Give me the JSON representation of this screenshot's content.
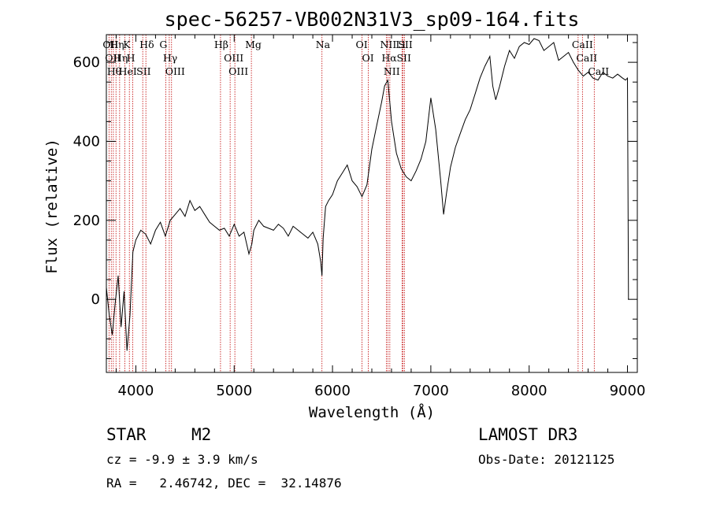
{
  "chart_data": {
    "type": "line",
    "title": "spec-56257-VB002N31V3_sp09-164.fits",
    "xlabel": "Wavelength (Å)",
    "ylabel": "Flux (relative)",
    "xlim": [
      3700,
      9100
    ],
    "ylim": [
      -185,
      670
    ],
    "x_ticks": [
      4000,
      5000,
      6000,
      7000,
      8000,
      9000
    ],
    "x_tick_labels": [
      "4000",
      "5000",
      "6000",
      "7000",
      "8000",
      "9000"
    ],
    "y_ticks": [
      0,
      200,
      400,
      600
    ],
    "y_tick_labels": [
      "0",
      "200",
      "400",
      "600"
    ],
    "series": [
      {
        "name": "flux",
        "x": [
          3700,
          3730,
          3760,
          3790,
          3820,
          3850,
          3880,
          3910,
          3940,
          3970,
          4000,
          4050,
          4100,
          4150,
          4200,
          4250,
          4300,
          4350,
          4400,
          4450,
          4500,
          4550,
          4600,
          4650,
          4700,
          4750,
          4800,
          4850,
          4900,
          4950,
          5000,
          5050,
          5100,
          5150,
          5180,
          5200,
          5250,
          5300,
          5350,
          5400,
          5450,
          5500,
          5550,
          5600,
          5650,
          5700,
          5750,
          5800,
          5850,
          5880,
          5893,
          5905,
          5930,
          5960,
          6000,
          6050,
          6100,
          6150,
          6200,
          6250,
          6300,
          6350,
          6400,
          6450,
          6500,
          6530,
          6563,
          6600,
          6650,
          6700,
          6750,
          6800,
          6850,
          6900,
          6950,
          7000,
          7050,
          7100,
          7130,
          7160,
          7200,
          7250,
          7300,
          7350,
          7400,
          7450,
          7500,
          7550,
          7600,
          7630,
          7660,
          7700,
          7750,
          7800,
          7850,
          7900,
          7950,
          8000,
          8050,
          8100,
          8150,
          8200,
          8250,
          8300,
          8350,
          8400,
          8450,
          8500,
          8550,
          8600,
          8650,
          8700,
          8750,
          8800,
          8850,
          8900,
          8950,
          8980,
          9000,
          9010
        ],
        "y": [
          30,
          -40,
          -90,
          -10,
          60,
          -70,
          20,
          -130,
          -40,
          120,
          150,
          175,
          165,
          140,
          175,
          195,
          160,
          200,
          215,
          230,
          210,
          250,
          225,
          235,
          215,
          195,
          185,
          175,
          180,
          160,
          190,
          160,
          170,
          115,
          140,
          175,
          200,
          185,
          180,
          175,
          190,
          180,
          160,
          185,
          175,
          165,
          155,
          170,
          140,
          95,
          60,
          155,
          235,
          250,
          265,
          300,
          320,
          340,
          300,
          285,
          260,
          290,
          380,
          440,
          500,
          540,
          555,
          450,
          370,
          330,
          310,
          300,
          325,
          355,
          400,
          510,
          430,
          300,
          215,
          270,
          335,
          385,
          420,
          455,
          480,
          520,
          560,
          590,
          615,
          540,
          505,
          540,
          590,
          630,
          610,
          640,
          650,
          645,
          660,
          655,
          630,
          640,
          650,
          605,
          615,
          625,
          600,
          580,
          565,
          575,
          560,
          555,
          575,
          565,
          560,
          570,
          560,
          555,
          560,
          0
        ]
      }
    ],
    "line_markers": [
      {
        "wavelength": 3727,
        "label": "OII"
      },
      {
        "wavelength": 3750,
        "label": "OII"
      },
      {
        "wavelength": 3771,
        "label": "Hθ"
      },
      {
        "wavelength": 3798,
        "label": "Hη"
      },
      {
        "wavelength": 3835,
        "label": "Hη"
      },
      {
        "wavelength": 3889,
        "label": "HeI"
      },
      {
        "wavelength": 3934,
        "label": "K"
      },
      {
        "wavelength": 3969,
        "label": "H"
      },
      {
        "wavelength": 4070,
        "label": "SII"
      },
      {
        "wavelength": 4102,
        "label": "Hδ"
      },
      {
        "wavelength": 4304,
        "label": "G"
      },
      {
        "wavelength": 4340,
        "label": "Hγ"
      },
      {
        "wavelength": 4363,
        "label": "OIII"
      },
      {
        "wavelength": 4861,
        "label": "Hβ"
      },
      {
        "wavelength": 4959,
        "label": "OIII"
      },
      {
        "wavelength": 5007,
        "label": "OIII"
      },
      {
        "wavelength": 5175,
        "label": "Mg"
      },
      {
        "wavelength": 5893,
        "label": "Na"
      },
      {
        "wavelength": 6300,
        "label": "OI"
      },
      {
        "wavelength": 6364,
        "label": "OI"
      },
      {
        "wavelength": 6548,
        "label": "NII"
      },
      {
        "wavelength": 6563,
        "label": "Hα"
      },
      {
        "wavelength": 6583,
        "label": "NII"
      },
      {
        "wavelength": 6707,
        "label": "Li"
      },
      {
        "wavelength": 6716,
        "label": "SII"
      },
      {
        "wavelength": 6731,
        "label": "SII"
      },
      {
        "wavelength": 8498,
        "label": "CaII"
      },
      {
        "wavelength": 8542,
        "label": "CaII"
      },
      {
        "wavelength": 8662,
        "label": "CaII"
      }
    ],
    "line_color": "#000000",
    "marker_color": "#c00000"
  },
  "info": {
    "object_type": "STAR",
    "subclass": "M2",
    "survey": "LAMOST DR3",
    "cz": "cz = -9.9 ± 3.9 km/s",
    "obs_date": "Obs-Date: 20121125",
    "coords": "RA =   2.46742, DEC =  32.14876"
  }
}
